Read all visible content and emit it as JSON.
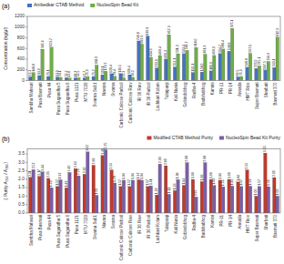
{
  "chart_data": [
    {
      "type": "bar",
      "title": "(a)",
      "ylabel": "Concentration (ng/μl)",
      "categories": [
        "Sambha Mahsuri",
        "Pusa Basmati",
        "Pusa 44",
        "Pusa Sugandha 5",
        "Pusa Sugandha 6",
        "Pusa 1121",
        "MTU 7029",
        "Swarna Sub1",
        "Navara",
        "Swarna",
        "Carbonic Calrose Parboil",
        "Carbonic Calrose Raw",
        "IR 36 Raw",
        "IR 36 Parboil",
        "Lachkari Kolam",
        "Tulaipanji",
        "Kali Nunia",
        "Gobindobhog",
        "Radha-4",
        "Badshabhog",
        "Kamini",
        "PR-11",
        "PR-14",
        "Annada",
        "HMT Rice",
        "Super Basmati",
        "Sharbati",
        "Basmati 370"
      ],
      "series": [
        {
          "name": "Ambedkar CTAB Method",
          "color": "#4472C4",
          "values": [
            67.3,
            93.0,
            76.1,
            63.1,
            53.3,
            48.3,
            47.7,
            75.7,
            109.1,
            128.4,
            130.5,
            109.4,
            740.8,
            830.9,
            233.1,
            401.3,
            253.1,
            503.4,
            150.1,
            158.0,
            181.1,
            504.7,
            548.8,
            68.5,
            248.8,
            225.0,
            197.5,
            243.1
          ],
          "value_labels": [
            "67.3",
            "93.0",
            "76.1",
            "63.1",
            "53.3",
            "48.3",
            "47.7",
            "75.7",
            "109.1",
            "128.4",
            "130.5",
            "109.4",
            "740.8",
            "830.9",
            "233.1",
            "401.3",
            "253.1",
            "503.4",
            "150.1",
            "158.0",
            "181.1",
            "504.7",
            "548.8",
            "68.5",
            "248.8",
            "225.0",
            "197.5",
            "243.1"
          ]
        },
        {
          "name": "NucleoSpin Bead Kit",
          "color": "#70AD47",
          "values": [
            148.8,
            585.6,
            623.7,
            59.1,
            43.8,
            53.5,
            75.0,
            288.0,
            174.7,
            79.4,
            50.3,
            59.2,
            682.6,
            434.5,
            469.4,
            857.3,
            501.3,
            564.7,
            618.0,
            491.3,
            469.1,
            588.4,
            975.1,
            75.0,
            507.1,
            275.1,
            356.0,
            812.3
          ],
          "value_labels": [
            "148.8",
            "585.6",
            "623.7",
            "59.1",
            "43.8",
            "53.5",
            "75.0",
            "288.0",
            "174.7",
            "79.4",
            "50.3",
            "59.2",
            "682.6",
            "434.5",
            "469.4",
            "857.3",
            "501.3",
            "564.7",
            "618.0",
            "491.3",
            "469.1",
            "588.4",
            "975.1",
            "75.0",
            "507.1",
            "275.1",
            "356.0",
            "812.3"
          ]
        }
      ],
      "ylim": [
        0,
        1200
      ],
      "yticks": [
        0,
        200,
        400,
        600,
        800,
        1000,
        1200
      ],
      "grid": false,
      "legend": "upper left",
      "data_labels": true
    },
    {
      "type": "bar",
      "title": "(b)",
      "ylabel": "( Purity A₂₆₀ / A₂₈₀)",
      "categories": [
        "Sambha Mahsuri",
        "Pusa Basmati",
        "Pusa 44",
        "Pusa Sugandha 5",
        "Pusa Sugandha 6",
        "Pusa 1121",
        "MTU 7029",
        "Swarna Sub1",
        "Navara",
        "Swarna",
        "Carbonic Calrose Parboil",
        "Carbonic Calrose Raw",
        "IR 36 Raw",
        "IR 36 Parboil",
        "Lachkari Kolam",
        "Tulaipanji",
        "Kali Nunia",
        "Gobindobhog",
        "Radha-4",
        "Badshabhog",
        "Kamini",
        "PR-11",
        "PR-14",
        "Annada",
        "HMT Rice",
        "Super Basmati",
        "Sharbati",
        "Basmati 370"
      ],
      "series": [
        {
          "name": "Modified CTAB Method Purity",
          "color": "#C0392B",
          "values": [
            2.11,
            2.17,
            2.05,
            1.57,
            1.49,
            2.63,
            2.3,
            2.83,
            3.41,
            2.55,
            1.57,
            1.57,
            1.97,
            1.57,
            1.07,
            2.8,
            1.33,
            1.64,
            1.99,
            1.86,
            1.99,
            1.94,
            1.99,
            1.84,
            2.55,
            1.0,
            3.55,
            2.1
          ],
          "value_labels": [
            "2.11",
            "2.17",
            "2.05",
            "1.57",
            "1.49",
            "2.63",
            "2.30",
            "2.83",
            "3.41",
            "2.55",
            "1.57",
            "1.57",
            "1.97",
            "1.57",
            "1.07",
            "2.80",
            "1.33",
            "1.64",
            "1.99",
            "1.86",
            "1.99",
            "1.94",
            "1.99",
            "1.84",
            "2.55",
            "1.00",
            "3.55",
            "2.10"
          ]
        },
        {
          "name": "NucleoSpin Bead Kit Purity",
          "color": "#7B5EA7",
          "values": [
            2.57,
            2.44,
            1.5,
            1.97,
            2.4,
            2.2,
            3.62,
            1.05,
            3.75,
            1.78,
            1.94,
            1.94,
            1.94,
            1.61,
            2.9,
            1.11,
            1.98,
            2.98,
            0.95,
            2.98,
            1.63,
            1.55,
            1.6,
            1.57,
            1.59,
            1.57,
            1.56,
            1.0
          ],
          "value_labels": [
            "2.57",
            "2.44",
            "1.50",
            "1.97",
            "2.40",
            "2.20",
            "3.62",
            "1.05",
            "3.75",
            "1.78",
            "1.94",
            "1.94",
            "1.94",
            "1.61",
            "2.90",
            "1.11",
            "1.98",
            "2.98",
            "0.95",
            "2.98",
            "1.63",
            "1.55",
            "1.60",
            "1.57",
            "1.59",
            "1.57",
            "1.56",
            "1.00"
          ]
        }
      ],
      "ylim": [
        0,
        3.8
      ],
      "yticks": [
        {
          "value": 0.0,
          "label": "0.0"
        },
        0.5,
        {
          "value": 1.0,
          "label": "1.0"
        },
        1.5,
        {
          "value": 2.0,
          "label": "2.0"
        },
        2.5,
        {
          "value": 3.0,
          "label": "3.0"
        },
        3.5
      ],
      "grid": false,
      "legend": "upper right",
      "data_labels": true
    }
  ]
}
